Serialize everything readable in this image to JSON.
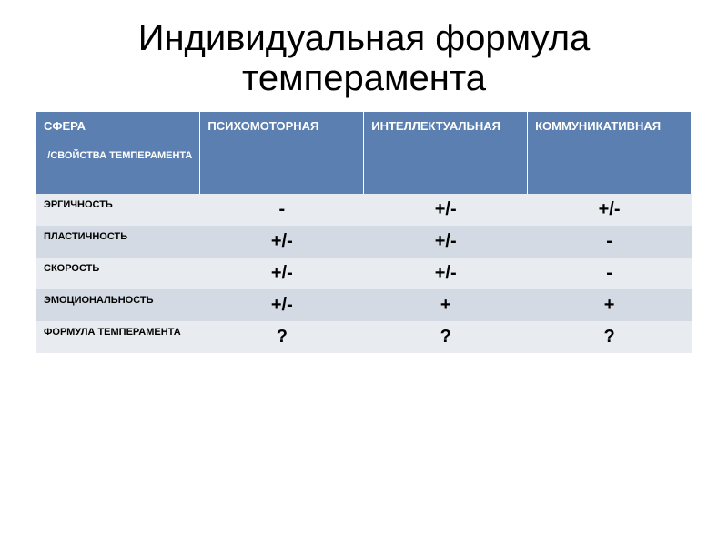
{
  "title": "Индивидуальная формула темперамента",
  "table": {
    "header": {
      "sphere_label": "СФЕРА",
      "sphere_sublabel": "/СВОЙСТВА ТЕМПЕРАМЕНТА",
      "columns": [
        "ПСИХОМОТОРНАЯ",
        "ИНТЕЛЛЕКТУАЛЬНАЯ",
        "КОММУНИКАТИВНАЯ"
      ]
    },
    "rows": [
      {
        "label": "ЭРГИЧНОСТЬ",
        "values": [
          "-",
          "+/-",
          "+/-"
        ]
      },
      {
        "label": "ПЛАСТИЧНОСТЬ",
        "values": [
          "+/-",
          "+/-",
          "-"
        ]
      },
      {
        "label": "СКОРОСТЬ",
        "values": [
          "+/-",
          "+/-",
          "-"
        ]
      },
      {
        "label": "ЭМОЦИОНАЛЬНОСТЬ",
        "values": [
          "+/-",
          "+",
          "+"
        ]
      },
      {
        "label": "ФОРМУЛА ТЕМПЕРАМЕНТА",
        "values": [
          "?",
          "?",
          "?"
        ]
      }
    ],
    "colors": {
      "header_bg": "#5a7fb0",
      "header_text": "#ffffff",
      "row_bg_odd": "#e8ebef",
      "row_bg_even": "#d4dae3",
      "text": "#000000"
    },
    "fonts": {
      "title_size": 40,
      "header_size": 13,
      "label_size": 11,
      "value_size": 20
    }
  }
}
